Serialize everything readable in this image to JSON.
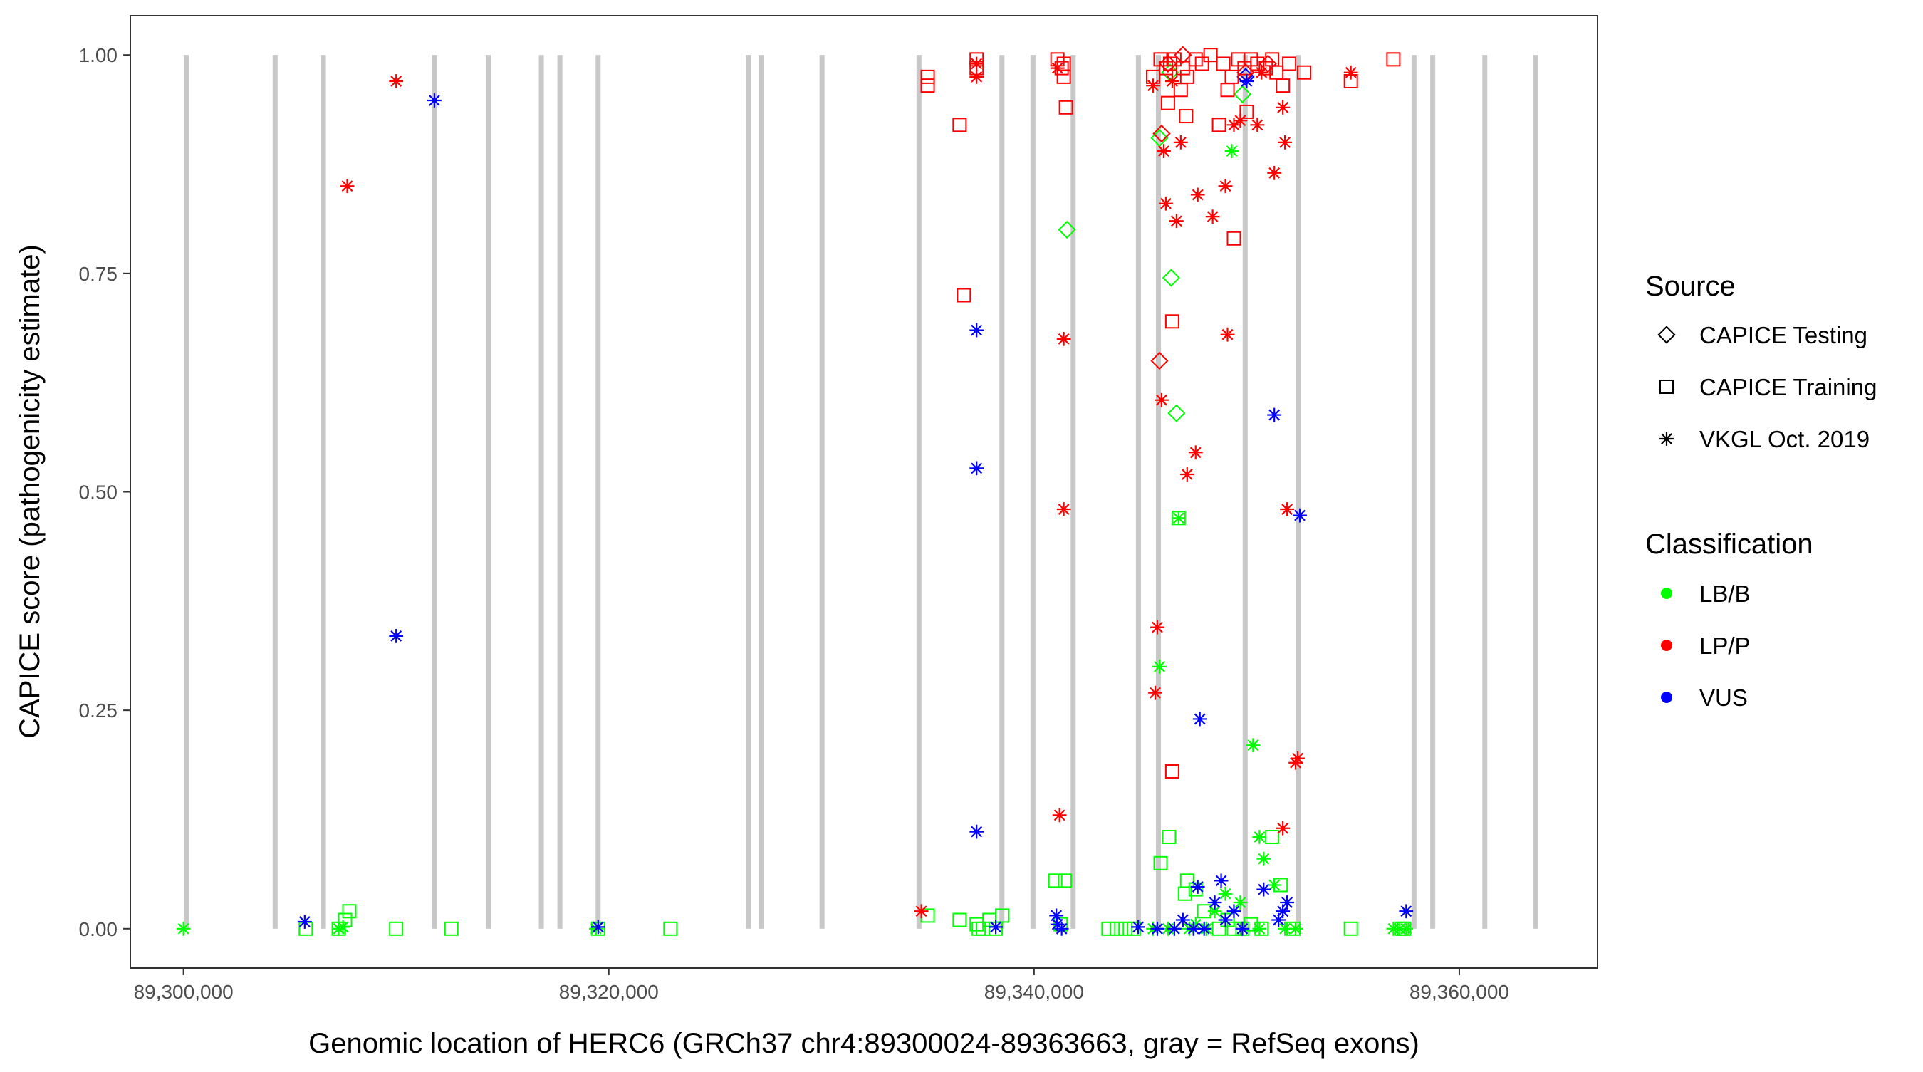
{
  "chart_data": {
    "type": "scatter",
    "xlabel": "Genomic location of HERC6 (GRCh37 chr4:89300024-89363663, gray = RefSeq exons)",
    "ylabel": "CAPICE score (pathogenicity estimate)",
    "xlim": [
      89297500,
      89366500
    ],
    "ylim": [
      -0.045,
      1.045
    ],
    "x_ticks": [
      89300000,
      89320000,
      89340000,
      89360000
    ],
    "x_tick_labels": [
      "89,300,000",
      "89,320,000",
      "89,340,000",
      "89,360,000"
    ],
    "y_ticks": [
      0,
      0.25,
      0.5,
      0.75,
      1
    ],
    "y_tick_labels": [
      "0.00",
      "0.25",
      "0.50",
      "0.75",
      "1.00"
    ],
    "grid": false,
    "exons": [
      89300140,
      89304310,
      89306580,
      89311790,
      89314340,
      89316830,
      89317700,
      89319500,
      89326560,
      89327160,
      89330030,
      89334590,
      89338490,
      89339950,
      89341840,
      89344910,
      89345850,
      89349930,
      89352430,
      89357870,
      89358750,
      89361200,
      89363600
    ],
    "legend_source": {
      "title": "Source",
      "items": [
        {
          "label": "CAPICE Testing",
          "shape": "diamond"
        },
        {
          "label": "CAPICE Training",
          "shape": "square"
        },
        {
          "label": "VKGL Oct. 2019",
          "shape": "asterisk"
        }
      ]
    },
    "legend_classification": {
      "title": "Classification",
      "items": [
        {
          "label": "LB/B",
          "color": "#00ff00"
        },
        {
          "label": "LP/P",
          "color": "#ff0000"
        },
        {
          "label": "VUS",
          "color": "#0000ff"
        }
      ]
    },
    "legend_position": "right",
    "series": [
      {
        "name": "LB/B",
        "source": "CAPICE Testing",
        "color": "#00ff00",
        "shape": "diamond",
        "points": [
          [
            89346400,
            0.98
          ],
          [
            89341550,
            0.8
          ],
          [
            89346450,
            0.745
          ],
          [
            89346700,
            0.59
          ],
          [
            89345900,
            0.905
          ],
          [
            89349800,
            0.955
          ]
        ]
      },
      {
        "name": "LP/P",
        "source": "CAPICE Testing",
        "color": "#ff0000",
        "shape": "diamond",
        "points": [
          [
            89345900,
            0.65
          ],
          [
            89346000,
            0.91
          ],
          [
            89346300,
            0.99
          ],
          [
            89347000,
            1.0
          ],
          [
            89349950,
            0.98
          ],
          [
            89351000,
            0.99
          ]
        ]
      },
      {
        "name": "VUS",
        "source": "CAPICE Testing",
        "color": "#0000ff",
        "shape": "diamond",
        "points": [
          [
            89349950,
            0.975
          ]
        ]
      },
      {
        "name": "LB/B",
        "source": "CAPICE Training",
        "color": "#00ff00",
        "shape": "square",
        "points": [
          [
            89305750,
            0.0
          ],
          [
            89307300,
            0.0
          ],
          [
            89307600,
            0.01
          ],
          [
            89307800,
            0.02
          ],
          [
            89310000,
            0.0
          ],
          [
            89312600,
            0.0
          ],
          [
            89319500,
            0.0
          ],
          [
            89322900,
            0.0
          ],
          [
            89335000,
            0.015
          ],
          [
            89336500,
            0.01
          ],
          [
            89337300,
            0.005
          ],
          [
            89337400,
            0.0
          ],
          [
            89337600,
            0.0
          ],
          [
            89337900,
            0.01
          ],
          [
            89338200,
            0.0
          ],
          [
            89338500,
            0.015
          ],
          [
            89341000,
            0.055
          ],
          [
            89341450,
            0.055
          ],
          [
            89341250,
            0.005
          ],
          [
            89343500,
            0.0
          ],
          [
            89343900,
            0.0
          ],
          [
            89344300,
            0.0
          ],
          [
            89344700,
            0.0
          ],
          [
            89345950,
            0.075
          ],
          [
            89346350,
            0.105
          ],
          [
            89346800,
            0.47
          ],
          [
            89347100,
            0.04
          ],
          [
            89347200,
            0.055
          ],
          [
            89347600,
            0.045
          ],
          [
            89348000,
            0.02
          ],
          [
            89348700,
            0.0
          ],
          [
            89349100,
            0.01
          ],
          [
            89349400,
            0.0
          ],
          [
            89349800,
            0.0
          ],
          [
            89350200,
            0.005
          ],
          [
            89350700,
            0.0
          ],
          [
            89351200,
            0.105
          ],
          [
            89351600,
            0.05
          ],
          [
            89352200,
            0.0
          ],
          [
            89354900,
            0.0
          ],
          [
            89357300,
            0.0
          ],
          [
            89357400,
            0.0
          ]
        ]
      },
      {
        "name": "LP/P",
        "source": "CAPICE Training",
        "color": "#ff0000",
        "shape": "square",
        "points": [
          [
            89335000,
            0.975
          ],
          [
            89335000,
            0.965
          ],
          [
            89336500,
            0.92
          ],
          [
            89336700,
            0.725
          ],
          [
            89337300,
            0.995
          ],
          [
            89337300,
            0.985
          ],
          [
            89341100,
            0.995
          ],
          [
            89341300,
            0.985
          ],
          [
            89341400,
            0.975
          ],
          [
            89341500,
            0.94
          ],
          [
            89341400,
            0.99
          ],
          [
            89345600,
            0.975
          ],
          [
            89345950,
            0.995
          ],
          [
            89346200,
            0.985
          ],
          [
            89346400,
            0.99
          ],
          [
            89346300,
            0.945
          ],
          [
            89346500,
            0.695
          ],
          [
            89346500,
            0.18
          ],
          [
            89346600,
            0.995
          ],
          [
            89346900,
            0.96
          ],
          [
            89347000,
            0.985
          ],
          [
            89347150,
            0.93
          ],
          [
            89347200,
            0.975
          ],
          [
            89347600,
            0.995
          ],
          [
            89347900,
            0.99
          ],
          [
            89348300,
            1.0
          ],
          [
            89348700,
            0.92
          ],
          [
            89348900,
            0.99
          ],
          [
            89349100,
            0.96
          ],
          [
            89349300,
            0.975
          ],
          [
            89349400,
            0.79
          ],
          [
            89349600,
            0.995
          ],
          [
            89349900,
            0.985
          ],
          [
            89350000,
            0.935
          ],
          [
            89350200,
            0.995
          ],
          [
            89350500,
            0.99
          ],
          [
            89350900,
            0.985
          ],
          [
            89351200,
            0.995
          ],
          [
            89351400,
            0.98
          ],
          [
            89351700,
            0.965
          ],
          [
            89352000,
            0.99
          ],
          [
            89352700,
            0.98
          ],
          [
            89354900,
            0.97
          ],
          [
            89356900,
            0.995
          ]
        ]
      },
      {
        "name": "LB/B",
        "source": "VKGL Oct. 2019",
        "color": "#00ff00",
        "shape": "asterisk",
        "points": [
          [
            89300000,
            0.0
          ],
          [
            89307300,
            0.0
          ],
          [
            89307500,
            0.002
          ],
          [
            89319400,
            0.0
          ],
          [
            89345600,
            0.0
          ],
          [
            89345900,
            0.3
          ],
          [
            89346300,
            0.0
          ],
          [
            89346600,
            0.0
          ],
          [
            89346800,
            0.47
          ],
          [
            89347300,
            0.0
          ],
          [
            89347600,
            0.005
          ],
          [
            89348100,
            0.0
          ],
          [
            89348500,
            0.02
          ],
          [
            89349000,
            0.04
          ],
          [
            89349300,
            0.89
          ],
          [
            89349700,
            0.03
          ],
          [
            89350300,
            0.21
          ],
          [
            89350600,
            0.105
          ],
          [
            89350800,
            0.08
          ],
          [
            89350600,
            0.0
          ],
          [
            89351300,
            0.05
          ],
          [
            89351800,
            0.0
          ],
          [
            89352300,
            0.0
          ],
          [
            89356900,
            0.0
          ],
          [
            89357200,
            0.0
          ],
          [
            89357500,
            0.0
          ]
        ]
      },
      {
        "name": "LP/P",
        "source": "VKGL Oct. 2019",
        "color": "#ff0000",
        "shape": "asterisk",
        "points": [
          [
            89307700,
            0.85
          ],
          [
            89310000,
            0.97
          ],
          [
            89334700,
            0.02
          ],
          [
            89337300,
            0.99
          ],
          [
            89337300,
            0.975
          ],
          [
            89341100,
            0.985
          ],
          [
            89341200,
            0.13
          ],
          [
            89341400,
            0.675
          ],
          [
            89341400,
            0.48
          ],
          [
            89345600,
            0.965
          ],
          [
            89345700,
            0.27
          ],
          [
            89345800,
            0.345
          ],
          [
            89346000,
            0.605
          ],
          [
            89346100,
            0.89
          ],
          [
            89346200,
            0.83
          ],
          [
            89346500,
            0.97
          ],
          [
            89346700,
            0.81
          ],
          [
            89346900,
            0.9
          ],
          [
            89347200,
            0.52
          ],
          [
            89347600,
            0.545
          ],
          [
            89347700,
            0.84
          ],
          [
            89348400,
            0.815
          ],
          [
            89349000,
            0.85
          ],
          [
            89349100,
            0.68
          ],
          [
            89349400,
            0.92
          ],
          [
            89349700,
            0.925
          ],
          [
            89350500,
            0.92
          ],
          [
            89350700,
            0.98
          ],
          [
            89351300,
            0.865
          ],
          [
            89351800,
            0.9
          ],
          [
            89351700,
            0.94
          ],
          [
            89351900,
            0.48
          ],
          [
            89351700,
            0.115
          ],
          [
            89352300,
            0.19
          ],
          [
            89352400,
            0.195
          ],
          [
            89354900,
            0.98
          ]
        ]
      },
      {
        "name": "VUS",
        "source": "VKGL Oct. 2019",
        "color": "#0000ff",
        "shape": "asterisk",
        "points": [
          [
            89305700,
            0.008
          ],
          [
            89310000,
            0.335
          ],
          [
            89311800,
            0.948
          ],
          [
            89319500,
            0.002
          ],
          [
            89337300,
            0.685
          ],
          [
            89337300,
            0.527
          ],
          [
            89337300,
            0.111
          ],
          [
            89338200,
            0.002
          ],
          [
            89341050,
            0.015
          ],
          [
            89341100,
            0.005
          ],
          [
            89341300,
            0.0
          ],
          [
            89344900,
            0.002
          ],
          [
            89345800,
            0.0
          ],
          [
            89346600,
            0.0
          ],
          [
            89347000,
            0.01
          ],
          [
            89347500,
            0.0
          ],
          [
            89347700,
            0.048
          ],
          [
            89347800,
            0.24
          ],
          [
            89348000,
            0.0
          ],
          [
            89348500,
            0.03
          ],
          [
            89348800,
            0.055
          ],
          [
            89349000,
            0.01
          ],
          [
            89349400,
            0.02
          ],
          [
            89349800,
            0.0
          ],
          [
            89350000,
            0.97
          ],
          [
            89350800,
            0.045
          ],
          [
            89351300,
            0.588
          ],
          [
            89351500,
            0.01
          ],
          [
            89351700,
            0.02
          ],
          [
            89351900,
            0.03
          ],
          [
            89352500,
            0.473
          ],
          [
            89357500,
            0.02
          ]
        ]
      }
    ]
  }
}
